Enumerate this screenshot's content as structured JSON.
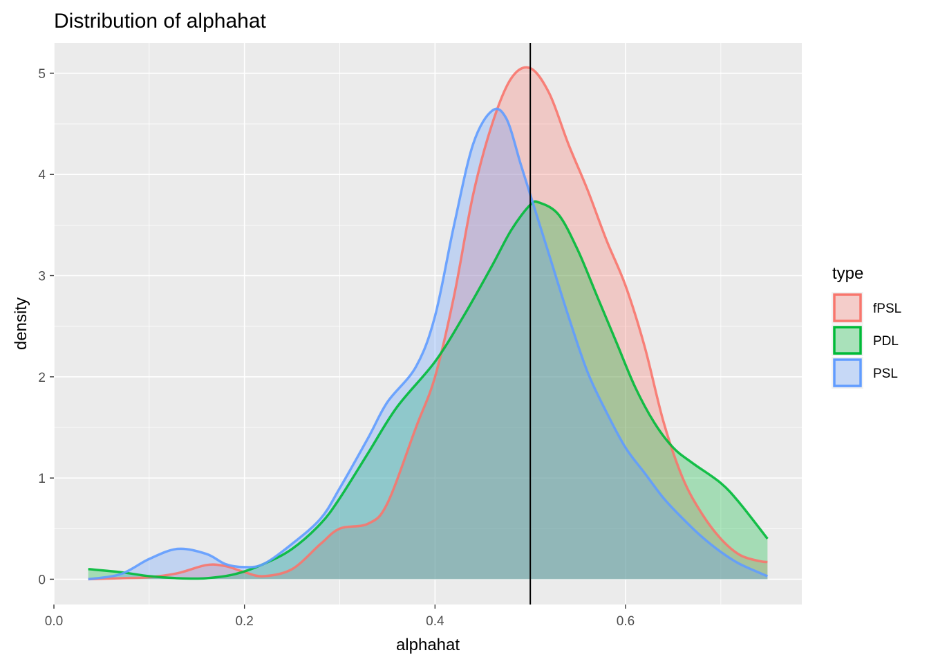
{
  "chart_data": {
    "type": "area",
    "title": "Distribution of alphahat",
    "xlabel": "alphahat",
    "ylabel": "density",
    "xlim": [
      0.0,
      0.785
    ],
    "ylim": [
      -0.25,
      5.3
    ],
    "x_ticks": [
      0.0,
      0.2,
      0.4,
      0.6
    ],
    "x_tick_labels": [
      "0.0",
      "0.2",
      "0.4",
      "0.6"
    ],
    "y_ticks": [
      0,
      1,
      2,
      3,
      4,
      5
    ],
    "y_tick_labels": [
      "0",
      "1",
      "2",
      "3",
      "4",
      "5"
    ],
    "grid": true,
    "vline": 0.5,
    "legend": {
      "title": "type",
      "placement": "right"
    },
    "series": [
      {
        "name": "fPSL",
        "color": "#F8766D",
        "points": [
          [
            0.036,
            0.0
          ],
          [
            0.07,
            0.01
          ],
          [
            0.1,
            0.02
          ],
          [
            0.13,
            0.06
          ],
          [
            0.16,
            0.14
          ],
          [
            0.18,
            0.13
          ],
          [
            0.2,
            0.07
          ],
          [
            0.22,
            0.03
          ],
          [
            0.25,
            0.1
          ],
          [
            0.28,
            0.35
          ],
          [
            0.3,
            0.5
          ],
          [
            0.33,
            0.55
          ],
          [
            0.35,
            0.75
          ],
          [
            0.38,
            1.5
          ],
          [
            0.4,
            2.0
          ],
          [
            0.42,
            2.8
          ],
          [
            0.44,
            3.8
          ],
          [
            0.46,
            4.5
          ],
          [
            0.48,
            4.95
          ],
          [
            0.5,
            5.05
          ],
          [
            0.52,
            4.8
          ],
          [
            0.54,
            4.3
          ],
          [
            0.56,
            3.85
          ],
          [
            0.58,
            3.35
          ],
          [
            0.6,
            2.9
          ],
          [
            0.62,
            2.3
          ],
          [
            0.64,
            1.55
          ],
          [
            0.66,
            1.0
          ],
          [
            0.68,
            0.65
          ],
          [
            0.7,
            0.4
          ],
          [
            0.72,
            0.24
          ],
          [
            0.74,
            0.18
          ],
          [
            0.749,
            0.17
          ]
        ]
      },
      {
        "name": "PDL",
        "color": "#00BA38",
        "points": [
          [
            0.036,
            0.1
          ],
          [
            0.07,
            0.07
          ],
          [
            0.1,
            0.03
          ],
          [
            0.13,
            0.01
          ],
          [
            0.16,
            0.01
          ],
          [
            0.19,
            0.05
          ],
          [
            0.22,
            0.15
          ],
          [
            0.25,
            0.3
          ],
          [
            0.28,
            0.55
          ],
          [
            0.3,
            0.8
          ],
          [
            0.33,
            1.25
          ],
          [
            0.36,
            1.7
          ],
          [
            0.4,
            2.15
          ],
          [
            0.43,
            2.6
          ],
          [
            0.46,
            3.1
          ],
          [
            0.48,
            3.45
          ],
          [
            0.5,
            3.7
          ],
          [
            0.51,
            3.72
          ],
          [
            0.53,
            3.6
          ],
          [
            0.55,
            3.25
          ],
          [
            0.57,
            2.8
          ],
          [
            0.59,
            2.35
          ],
          [
            0.61,
            1.9
          ],
          [
            0.63,
            1.55
          ],
          [
            0.65,
            1.3
          ],
          [
            0.67,
            1.15
          ],
          [
            0.7,
            0.95
          ],
          [
            0.72,
            0.75
          ],
          [
            0.749,
            0.4
          ]
        ]
      },
      {
        "name": "PSL",
        "color": "#619CFF",
        "points": [
          [
            0.036,
            0.0
          ],
          [
            0.07,
            0.05
          ],
          [
            0.1,
            0.2
          ],
          [
            0.13,
            0.3
          ],
          [
            0.16,
            0.25
          ],
          [
            0.18,
            0.15
          ],
          [
            0.2,
            0.12
          ],
          [
            0.22,
            0.15
          ],
          [
            0.25,
            0.35
          ],
          [
            0.28,
            0.6
          ],
          [
            0.3,
            0.9
          ],
          [
            0.33,
            1.4
          ],
          [
            0.35,
            1.75
          ],
          [
            0.38,
            2.1
          ],
          [
            0.4,
            2.6
          ],
          [
            0.42,
            3.5
          ],
          [
            0.44,
            4.3
          ],
          [
            0.46,
            4.63
          ],
          [
            0.475,
            4.55
          ],
          [
            0.49,
            4.1
          ],
          [
            0.5,
            3.8
          ],
          [
            0.52,
            3.2
          ],
          [
            0.54,
            2.6
          ],
          [
            0.56,
            2.05
          ],
          [
            0.58,
            1.65
          ],
          [
            0.6,
            1.3
          ],
          [
            0.62,
            1.05
          ],
          [
            0.64,
            0.8
          ],
          [
            0.66,
            0.6
          ],
          [
            0.68,
            0.42
          ],
          [
            0.7,
            0.27
          ],
          [
            0.72,
            0.15
          ],
          [
            0.749,
            0.03
          ]
        ]
      }
    ]
  }
}
